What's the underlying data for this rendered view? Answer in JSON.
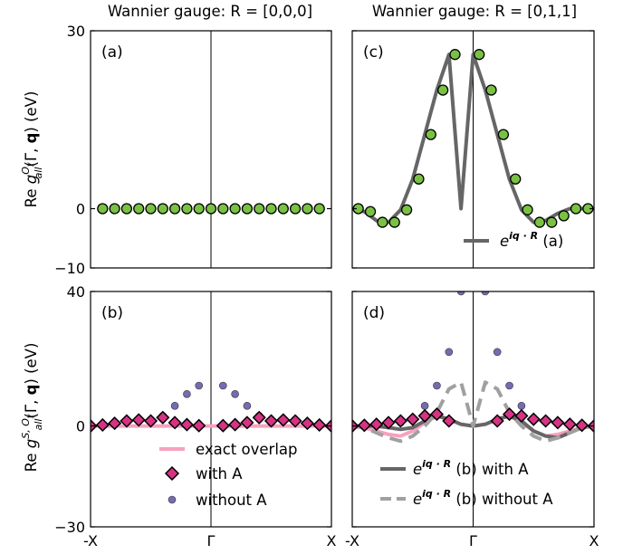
{
  "titles": {
    "left": "Wannier gauge: R = [0,0,0]",
    "right": "Wannier gauge: R = [0,1,1]"
  },
  "ylabels": {
    "top": {
      "prefix": "Re ",
      "g": "g",
      "sup": "O",
      "supsub": "y",
      "sub": "all",
      "args": "(Γ, ",
      "q": "q",
      "close": ") (eV)"
    },
    "bottom": {
      "prefix": "Re ",
      "g": "g",
      "sup": "S, O",
      "supsub": "y",
      "sub": "all",
      "args": "(Γ, ",
      "q": "q",
      "close": ") (eV)"
    }
  },
  "xticks": [
    "-X",
    "Γ",
    "X"
  ],
  "colors": {
    "green": "#7ac143",
    "pink_diamond": "#d63384",
    "purple": "#756bb1",
    "exact_line": "#f7a1bf",
    "dark_line": "#666666",
    "gray_dash": "#a0a0a0"
  },
  "chart_data": [
    {
      "id": "a",
      "type": "scatter",
      "panel_label": "(a)",
      "ylim": [
        -10,
        30
      ],
      "yticks": [
        "30",
        "0",
        "−10"
      ],
      "ytick_values": [
        30,
        0,
        -10
      ],
      "xlim": [
        -1,
        1
      ],
      "series": [
        {
          "marker": "circle-green",
          "x": [
            -0.9,
            -0.8,
            -0.7,
            -0.6,
            -0.5,
            -0.4,
            -0.3,
            -0.2,
            -0.1,
            0,
            0.1,
            0.2,
            0.3,
            0.4,
            0.5,
            0.6,
            0.7,
            0.8,
            0.9
          ],
          "values": [
            0,
            0,
            0,
            0,
            0,
            0,
            0,
            0,
            0,
            0,
            0,
            0,
            0,
            0,
            0,
            0,
            0,
            0,
            0
          ]
        }
      ]
    },
    {
      "id": "c",
      "type": "line",
      "panel_label": "(c)",
      "ylim": [
        -10,
        30
      ],
      "xlim": [
        -1,
        1
      ],
      "legend": {
        "text_prefix": "e",
        "text_sup": "iq · R",
        "text_suffix": " (a)"
      },
      "series": [
        {
          "style": "line-dark",
          "x": [
            -1,
            -0.9,
            -0.8,
            -0.7,
            -0.6,
            -0.5,
            -0.4,
            -0.3,
            -0.2,
            -0.1,
            0,
            0.1,
            0.2,
            0.3,
            0.4,
            0.5,
            0.6,
            0.7,
            0.8,
            0.9,
            1
          ],
          "values": [
            0,
            -0.5,
            -2,
            -2.3,
            -0.2,
            5,
            12.5,
            20,
            26,
            0,
            26,
            20,
            12.5,
            5,
            -0.2,
            -2.3,
            -2,
            -0.8,
            0,
            0,
            0
          ]
        },
        {
          "marker": "circle-green",
          "x": [
            -0.95,
            -0.85,
            -0.75,
            -0.65,
            -0.55,
            -0.45,
            -0.35,
            -0.25,
            -0.15,
            0.05,
            0.15,
            0.25,
            0.35,
            0.45,
            0.55,
            0.65,
            0.75,
            0.85,
            0.95
          ],
          "values": [
            0,
            -0.5,
            -2.3,
            -2.3,
            -0.2,
            5,
            12.5,
            20,
            26,
            26,
            20,
            12.5,
            5,
            -0.2,
            -2.3,
            -2.3,
            -1.2,
            0,
            0
          ]
        }
      ]
    },
    {
      "id": "b",
      "type": "scatter",
      "panel_label": "(b)",
      "ylim": [
        -30,
        40
      ],
      "yticks": [
        "40",
        "0",
        "−30"
      ],
      "ytick_values": [
        40,
        0,
        -30
      ],
      "xlim": [
        -1,
        1
      ],
      "legend": {
        "items": [
          "exact overlap",
          "with A",
          "without A"
        ]
      },
      "series": [
        {
          "name": "without A",
          "marker": "circle-purple",
          "x": [
            -0.4,
            -0.3,
            -0.2,
            -0.1,
            0.1,
            0.2,
            0.3,
            0.4,
            0.5
          ],
          "values": [
            3,
            6,
            9.5,
            12,
            12,
            9.5,
            6,
            3,
            1
          ]
        },
        {
          "name": "exact overlap",
          "style": "line-pink",
          "x": [
            -1,
            -0.8,
            -0.6,
            -0.4,
            -0.2,
            0,
            0.2,
            0.4,
            0.6,
            0.8,
            1
          ],
          "values": [
            0,
            0,
            0,
            0,
            0,
            0,
            0,
            0,
            0,
            0,
            0
          ]
        },
        {
          "name": "with A",
          "marker": "diamond-pink",
          "x": [
            -1,
            -0.9,
            -0.8,
            -0.7,
            -0.6,
            -0.5,
            -0.4,
            -0.3,
            -0.2,
            -0.1,
            0.1,
            0.2,
            0.3,
            0.4,
            0.5,
            0.6,
            0.7,
            0.8,
            0.9,
            1
          ],
          "values": [
            0,
            0.3,
            0.8,
            1.5,
            1.8,
            1.5,
            2.5,
            1,
            0.4,
            0.1,
            0.1,
            0.4,
            1,
            2.5,
            1.5,
            1.8,
            1.5,
            0.8,
            0.3,
            0
          ]
        }
      ]
    },
    {
      "id": "d",
      "type": "line",
      "panel_label": "(d)",
      "ylim": [
        -30,
        40
      ],
      "xlim": [
        -1,
        1
      ],
      "legend": {
        "items": [
          {
            "text_prefix": "e",
            "text_sup": "iq · R",
            "text_suffix": " (b) with A"
          },
          {
            "text_prefix": "e",
            "text_sup": "iq · R",
            "text_suffix": " (b) without A"
          }
        ]
      },
      "series": [
        {
          "name": "without A",
          "marker": "circle-purple",
          "x": [
            -0.6,
            -0.5,
            -0.4,
            -0.3,
            -0.2,
            -0.1,
            0.1,
            0.2,
            0.3,
            0.4,
            0.5
          ],
          "values": [
            1,
            2,
            6,
            12,
            22,
            40,
            40,
            22,
            12,
            6,
            2
          ]
        },
        {
          "name": "exact overlap",
          "style": "line-pink",
          "x": [
            -1,
            -0.9,
            -0.8,
            -0.7,
            -0.6,
            -0.5,
            -0.4,
            -0.3,
            -0.2,
            -0.1,
            0,
            0.1,
            0.2,
            0.3,
            0.4,
            0.5,
            0.6,
            0.7,
            0.8,
            0.9,
            1
          ],
          "values": [
            0,
            -0.5,
            -1.5,
            -2.5,
            -3,
            -1.5,
            1,
            3,
            2,
            0.5,
            0,
            0.5,
            2,
            3,
            1,
            -1.5,
            -3,
            -2.5,
            -1.5,
            -0.5,
            0
          ]
        },
        {
          "name": "(b) with A",
          "style": "line-dark",
          "x": [
            -1,
            -0.9,
            -0.8,
            -0.7,
            -0.6,
            -0.5,
            -0.4,
            -0.3,
            -0.2,
            -0.1,
            0,
            0.1,
            0.2,
            0.3,
            0.4,
            0.5,
            0.6,
            0.7,
            0.8,
            0.9,
            1
          ],
          "values": [
            0,
            0,
            0,
            -0.5,
            -1,
            -0.5,
            1.5,
            3,
            2,
            0.5,
            0,
            0.5,
            2,
            3,
            1.5,
            -1.5,
            -3,
            -3.5,
            -2,
            -0.5,
            0
          ]
        },
        {
          "name": "(b) without A",
          "style": "dash-gray",
          "x": [
            -1,
            -0.9,
            -0.8,
            -0.7,
            -0.6,
            -0.5,
            -0.4,
            -0.3,
            -0.2,
            -0.1,
            0,
            0.1,
            0.2,
            0.3,
            0.4,
            0.5,
            0.6,
            0.7,
            0.8,
            0.9,
            1
          ],
          "values": [
            0,
            -0.5,
            -2,
            -3.5,
            -4.5,
            -3,
            0,
            4,
            11,
            13,
            0,
            13,
            11,
            4,
            0,
            -3,
            -4.5,
            -3.5,
            -2,
            -0.5,
            0
          ]
        },
        {
          "name": "with A",
          "marker": "diamond-pink",
          "x": [
            -1,
            -0.9,
            -0.8,
            -0.7,
            -0.6,
            -0.5,
            -0.4,
            -0.3,
            -0.2,
            0.2,
            0.3,
            0.4,
            0.5,
            0.6,
            0.7,
            0.8,
            0.9,
            1
          ],
          "values": [
            0,
            0.2,
            0.5,
            1,
            1.5,
            2,
            3,
            3.5,
            1.5,
            1.5,
            3.5,
            3,
            2,
            1.5,
            1,
            0.5,
            0.2,
            0
          ]
        }
      ]
    }
  ]
}
